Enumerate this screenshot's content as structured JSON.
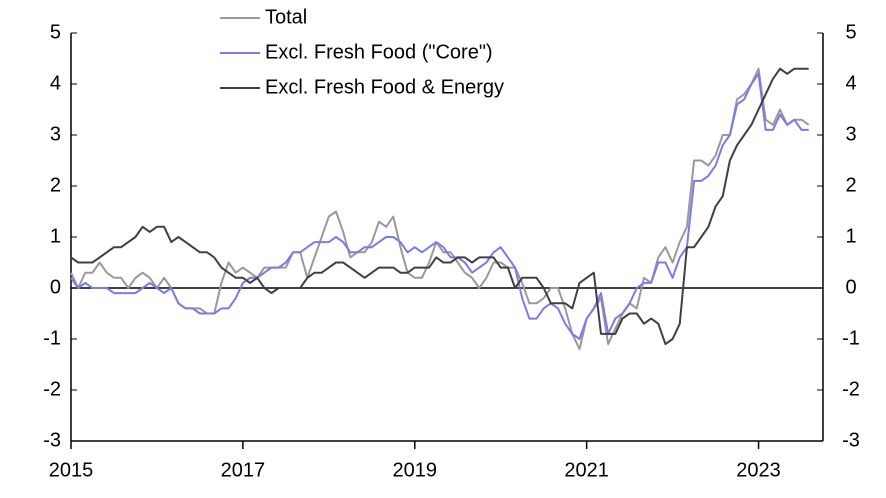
{
  "chart_data": {
    "type": "line",
    "categories": [
      "2015",
      null,
      null,
      null,
      null,
      null,
      null,
      null,
      null,
      null,
      null,
      null,
      null,
      null,
      null,
      null,
      null,
      null,
      null,
      null,
      null,
      null,
      null,
      null,
      "2017",
      null,
      null,
      null,
      null,
      null,
      null,
      null,
      null,
      null,
      null,
      null,
      null,
      null,
      null,
      null,
      null,
      null,
      null,
      null,
      null,
      null,
      null,
      null,
      "2019",
      null,
      null,
      null,
      null,
      null,
      null,
      null,
      null,
      null,
      null,
      null,
      null,
      null,
      null,
      null,
      null,
      null,
      null,
      null,
      null,
      null,
      null,
      null,
      "2021",
      null,
      null,
      null,
      null,
      null,
      null,
      null,
      null,
      null,
      null,
      null,
      null,
      null,
      null,
      null,
      null,
      null,
      null,
      null,
      null,
      null,
      null,
      null,
      "2023",
      null,
      null,
      null,
      null,
      null,
      null,
      null
    ],
    "series": [
      {
        "name": "Total",
        "color": "#999999",
        "values": [
          0.3,
          0.0,
          0.3,
          0.3,
          0.5,
          0.3,
          0.2,
          0.2,
          0.0,
          0.2,
          0.3,
          0.2,
          0.0,
          0.2,
          0.0,
          -0.3,
          -0.4,
          -0.4,
          -0.4,
          -0.5,
          -0.5,
          0.1,
          0.5,
          0.3,
          0.4,
          0.3,
          0.2,
          0.4,
          0.4,
          0.4,
          0.4,
          0.7,
          0.7,
          0.2,
          0.6,
          1.0,
          1.4,
          1.5,
          1.1,
          0.6,
          0.7,
          0.7,
          0.9,
          1.3,
          1.2,
          1.4,
          0.8,
          0.3,
          0.2,
          0.2,
          0.5,
          0.9,
          0.7,
          0.7,
          0.5,
          0.3,
          0.2,
          0.0,
          0.2,
          0.5,
          0.5,
          0.4,
          0.4,
          0.1,
          -0.3,
          -0.3,
          -0.2,
          0.0,
          0.0,
          -0.4,
          -0.9,
          -1.2,
          -0.6,
          -0.4,
          -0.2,
          -1.1,
          -0.8,
          -0.5,
          -0.3,
          -0.4,
          0.2,
          0.1,
          0.6,
          0.8,
          0.5,
          0.9,
          1.2,
          2.5,
          2.5,
          2.4,
          2.6,
          3.0,
          3.0,
          3.7,
          3.8,
          4.0,
          4.3,
          3.3,
          3.2,
          3.5,
          3.2,
          3.3,
          3.3,
          3.2
        ]
      },
      {
        "name": "Excl. Fresh Food (\"Core\")",
        "color": "#7b7be8",
        "values": [
          0.2,
          0.0,
          0.1,
          0.0,
          0.0,
          0.0,
          -0.1,
          -0.1,
          -0.1,
          -0.1,
          0.0,
          0.1,
          0.0,
          -0.1,
          0.0,
          -0.3,
          -0.4,
          -0.4,
          -0.5,
          -0.5,
          -0.5,
          -0.4,
          -0.4,
          -0.2,
          0.1,
          0.2,
          0.2,
          0.3,
          0.4,
          0.4,
          0.5,
          0.7,
          0.7,
          0.8,
          0.9,
          0.9,
          0.9,
          1.0,
          0.9,
          0.7,
          0.7,
          0.8,
          0.8,
          0.9,
          1.0,
          1.0,
          0.9,
          0.7,
          0.8,
          0.7,
          0.8,
          0.9,
          0.8,
          0.6,
          0.6,
          0.5,
          0.3,
          0.4,
          0.5,
          0.7,
          0.8,
          0.6,
          0.4,
          -0.2,
          -0.6,
          -0.6,
          -0.4,
          -0.3,
          -0.4,
          -0.7,
          -0.9,
          -1.0,
          -0.6,
          -0.4,
          -0.1,
          -0.9,
          -0.6,
          -0.5,
          -0.3,
          0.0,
          0.1,
          0.1,
          0.5,
          0.5,
          0.2,
          0.6,
          0.8,
          2.1,
          2.1,
          2.2,
          2.4,
          2.8,
          3.0,
          3.6,
          3.7,
          4.0,
          4.2,
          3.1,
          3.1,
          3.4,
          3.2,
          3.3,
          3.1,
          3.1
        ]
      },
      {
        "name": "Excl. Fresh Food & Energy",
        "color": "#404040",
        "values": [
          0.6,
          0.5,
          0.5,
          0.5,
          0.6,
          0.7,
          0.8,
          0.8,
          0.9,
          1.0,
          1.2,
          1.1,
          1.2,
          1.2,
          0.9,
          1.0,
          0.9,
          0.8,
          0.7,
          0.7,
          0.6,
          0.4,
          0.3,
          0.2,
          0.2,
          0.1,
          0.2,
          0.0,
          -0.1,
          0.0,
          0.0,
          0.0,
          0.0,
          0.2,
          0.3,
          0.3,
          0.4,
          0.5,
          0.5,
          0.4,
          0.3,
          0.2,
          0.3,
          0.4,
          0.4,
          0.4,
          0.3,
          0.3,
          0.4,
          0.4,
          0.4,
          0.6,
          0.5,
          0.5,
          0.6,
          0.6,
          0.5,
          0.6,
          0.6,
          0.6,
          0.4,
          0.4,
          0.0,
          0.2,
          0.2,
          0.2,
          0.0,
          -0.3,
          -0.3,
          -0.3,
          -0.4,
          0.1,
          0.2,
          0.3,
          -0.9,
          -0.9,
          -0.9,
          -0.6,
          -0.5,
          -0.5,
          -0.7,
          -0.6,
          -0.7,
          -1.1,
          -1.0,
          -0.7,
          0.8,
          0.8,
          1.0,
          1.2,
          1.6,
          1.8,
          2.5,
          2.8,
          3.0,
          3.2,
          3.5,
          3.8,
          4.1,
          4.3,
          4.2,
          4.3,
          4.3,
          4.3
        ]
      }
    ],
    "ylim": [
      -3,
      5
    ],
    "yticks": [
      -3,
      -2,
      -1,
      0,
      1,
      2,
      3,
      4,
      5
    ],
    "y2lim": [
      -3,
      5
    ],
    "y2ticks": [
      -3,
      -2,
      -1,
      0,
      1,
      2,
      3,
      4,
      5
    ],
    "grid": false,
    "legend": "top-left"
  }
}
